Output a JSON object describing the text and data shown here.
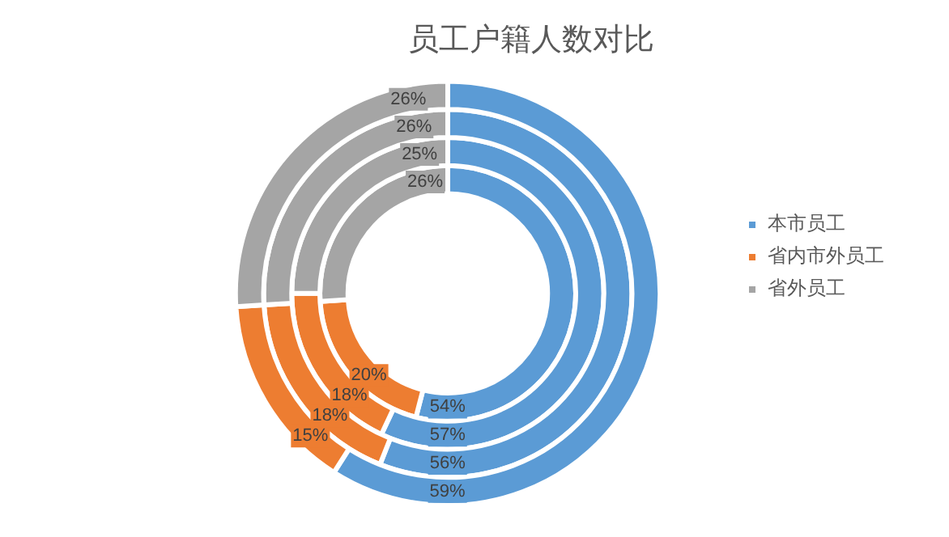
{
  "chart_data": {
    "type": "donut",
    "title": "员工户籍人数对比",
    "categories": [
      "本市员工",
      "省内市外员工",
      "省外员工"
    ],
    "colors": [
      "#5b9bd5",
      "#ed7d31",
      "#a5a5a5"
    ],
    "legend": "right",
    "series": [
      {
        "values": [
          59,
          15,
          26
        ],
        "value_labels": [
          "59%",
          "15%",
          "26%"
        ]
      },
      {
        "values": [
          56,
          18,
          26
        ],
        "value_labels": [
          "56%",
          "18%",
          "26%"
        ]
      },
      {
        "values": [
          57,
          18,
          25
        ],
        "value_labels": [
          "57%",
          "18%",
          "25%"
        ]
      },
      {
        "values": [
          54,
          20,
          26
        ],
        "value_labels": [
          "54%",
          "20%",
          "26%"
        ]
      }
    ]
  }
}
